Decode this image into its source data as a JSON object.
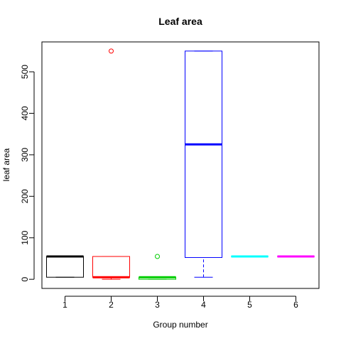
{
  "chart_data": {
    "type": "boxplot",
    "title": "Leaf area",
    "xlabel": "Group number",
    "ylabel": "leaf area",
    "ylim": [
      -22,
      572
    ],
    "yticks": [
      0,
      100,
      200,
      300,
      400,
      500
    ],
    "categories": [
      "1",
      "2",
      "3",
      "4",
      "5",
      "6"
    ],
    "groups": [
      {
        "color": "#000000",
        "min": 5,
        "q1": 5,
        "median": 55,
        "q3": 55,
        "max": 55,
        "outliers": []
      },
      {
        "color": "#ff0000",
        "min": 0,
        "q1": 5,
        "median": 5,
        "q3": 55,
        "max": 55,
        "outliers": [
          550
        ]
      },
      {
        "color": "#00cd00",
        "min": 0,
        "q1": 0,
        "median": 5,
        "q3": 5,
        "max": 5,
        "outliers": [
          55
        ]
      },
      {
        "color": "#0000ff",
        "min": 5,
        "q1": 52.5,
        "median": 325,
        "q3": 550,
        "max": 550,
        "outliers": []
      },
      {
        "color": "#00ffff",
        "min": 55,
        "q1": 55,
        "median": 55,
        "q3": 55,
        "max": 55,
        "outliers": []
      },
      {
        "color": "#ff00ff",
        "min": 55,
        "q1": 55,
        "median": 55,
        "q3": 55,
        "max": 55,
        "outliers": []
      }
    ],
    "grid": false,
    "legend": "none"
  }
}
